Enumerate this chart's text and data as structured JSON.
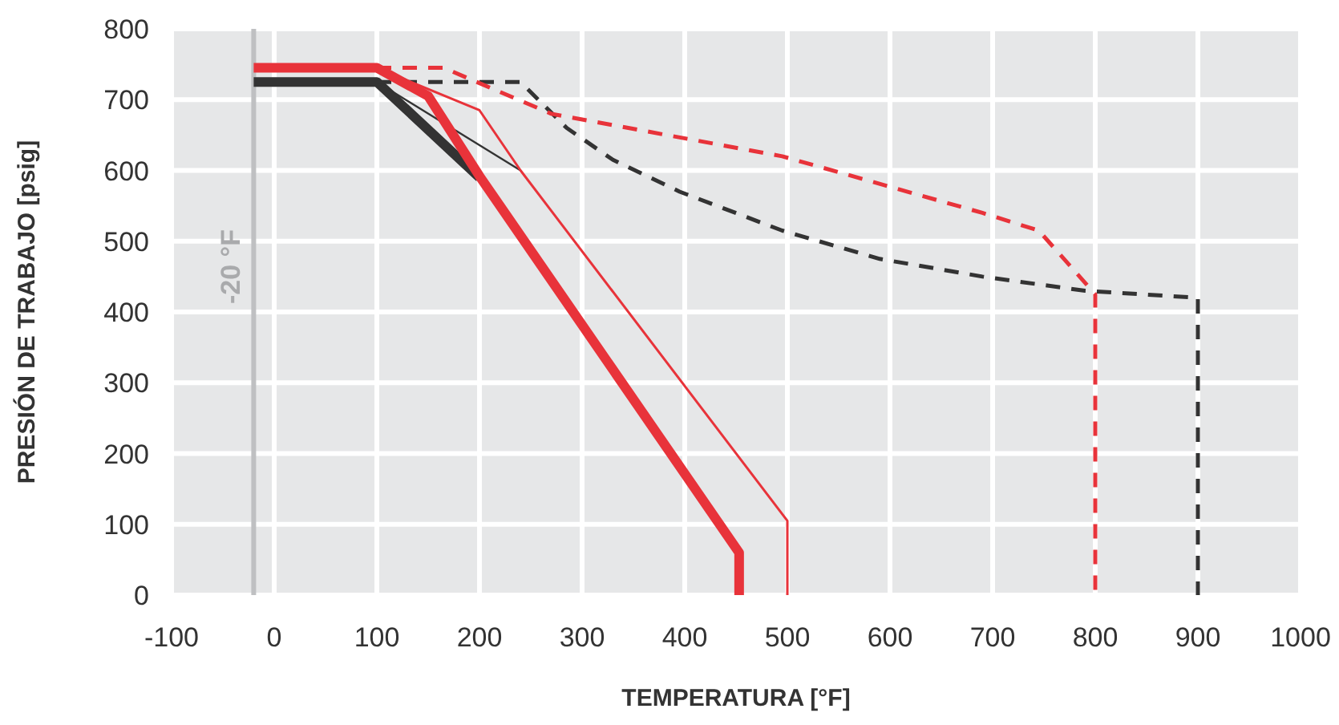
{
  "chart_data": {
    "type": "line",
    "xlabel": "TEMPERATURA [°F]",
    "ylabel": "PRESIÓN DE TRABAJO [psig]",
    "xlim": [
      -100,
      1000
    ],
    "xticks": [
      -100,
      0,
      100,
      200,
      300,
      400,
      500,
      600,
      700,
      800,
      900,
      1000
    ],
    "ylim": [
      0,
      800
    ],
    "yticks": [
      0,
      100,
      200,
      300,
      400,
      500,
      600,
      700,
      800
    ],
    "grid": true,
    "marker": "none",
    "ref_lines": [
      {
        "axis": "x",
        "value": -20,
        "label": "-20 °F",
        "color": "#bfc0c2"
      }
    ],
    "series": [
      {
        "color": "#333333",
        "line_style": "solid",
        "x": [
          -20,
          100,
          200
        ],
        "values": [
          725,
          725,
          590
        ]
      },
      {
        "color": "#333333",
        "line_style": "solid",
        "x": [
          100,
          240
        ],
        "values": [
          725,
          600
        ]
      },
      {
        "color": "#333333",
        "line_style": "dashed",
        "x": [
          100,
          240,
          285,
          330,
          395,
          495,
          590,
          690,
          790,
          900,
          900
        ],
        "values": [
          725,
          725,
          660,
          615,
          570,
          515,
          475,
          450,
          430,
          420,
          0
        ]
      },
      {
        "color": "#e8333a",
        "line_style": "dashed",
        "x": [
          100,
          165,
          270,
          495,
          690,
          745,
          800,
          800
        ],
        "values": [
          745,
          745,
          680,
          620,
          540,
          515,
          425,
          0
        ]
      },
      {
        "color": "#e8333a",
        "line_style": "solid",
        "x": [
          100,
          200,
          240,
          500,
          500
        ],
        "values": [
          745,
          685,
          600,
          105,
          0
        ]
      },
      {
        "color": "#e8333a",
        "line_style": "solid",
        "x": [
          -20,
          100,
          150,
          200,
          453,
          453
        ],
        "values": [
          745,
          745,
          705,
          592,
          60,
          0
        ]
      }
    ]
  }
}
